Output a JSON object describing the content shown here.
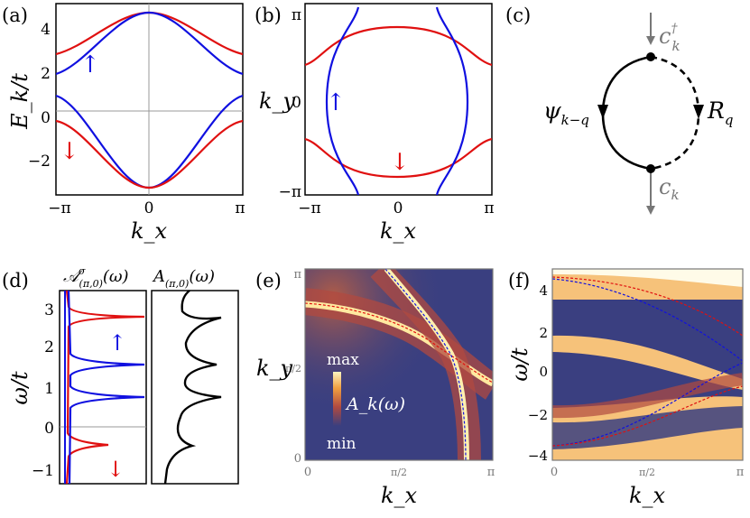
{
  "panels": {
    "a": {
      "label": "(a)",
      "ylabel": "E_k/t",
      "xlabel": "k_x",
      "yticks": [
        "4",
        "2",
        "0",
        "−2"
      ],
      "xticks": [
        "−π",
        "0",
        "π"
      ],
      "up_arrow": "↑",
      "down_arrow": "↓"
    },
    "b": {
      "label": "(b)",
      "ylabel": "k_y",
      "xlabel": "k_x",
      "yticks": [
        "π",
        "0",
        "−π"
      ],
      "xticks": [
        "−π",
        "0",
        "π"
      ],
      "up_arrow": "↑",
      "down_arrow": "↓"
    },
    "c": {
      "label": "(c)",
      "top_op": "c",
      "top_sup": "†",
      "top_sub": "k",
      "bottom_op": "c",
      "bottom_sub": "k",
      "left": "ψ",
      "left_sub": "k−q",
      "right": "R",
      "right_sub": "q"
    },
    "d": {
      "label": "(d)",
      "ylabel": "ω/t",
      "title_left": "𝒜",
      "title_left_sup": "σ",
      "title_left_sub": "(π,0)",
      "title_left_arg": "(ω)",
      "title_right": "A",
      "title_right_sub": "(π,0)",
      "title_right_arg": "(ω)",
      "yticks": [
        "3",
        "2",
        "1",
        "0",
        "−1"
      ],
      "up_arrow": "↑",
      "down_arrow": "↓"
    },
    "e": {
      "label": "(e)",
      "ylabel": "k_y",
      "xlabel": "k_x",
      "yticks": [
        "π",
        "π/2",
        "0"
      ],
      "xticks": [
        "0",
        "π/2",
        "π"
      ],
      "cbar_max": "max",
      "cbar_min": "min",
      "cbar_title": "A_k(ω)"
    },
    "f": {
      "label": "(f)",
      "ylabel": "ω/t",
      "xlabel": "k_x",
      "yticks": [
        "4",
        "2",
        "0",
        "−2",
        "−4"
      ],
      "xticks": [
        "0",
        "π/2",
        "π"
      ]
    }
  },
  "colors": {
    "up": "#1010e0",
    "down": "#e01010",
    "map_dark": "#3a3f80",
    "map_bright": "#fff0b0"
  }
}
